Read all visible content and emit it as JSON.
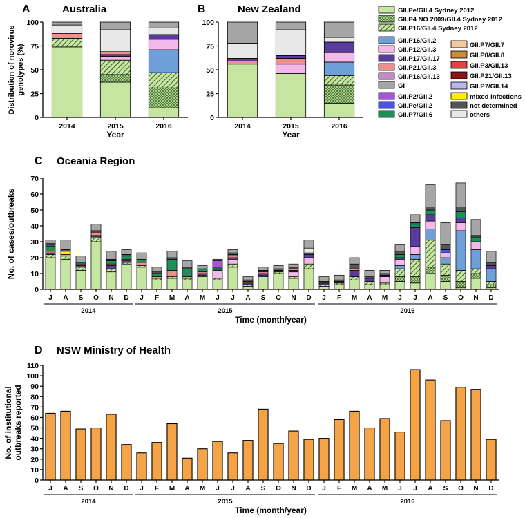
{
  "colors": {
    "sydney2012": "#c5e5a0",
    "p4no2009": "#8fbf6a",
    "p16_gii4": "#c5e5a0",
    "p16_gii2": "#6f9fd8",
    "p12_gii3": "#f2b8e8",
    "p17_gii17": "#5a3c9c",
    "p21_gii3": "#ee8f8f",
    "p16_gii13": "#c48ac7",
    "gi": "#a6a6a6",
    "p2_gii2": "#a855d4",
    "pe_gii2": "#4555e6",
    "p7_gii6": "#1e8f5a",
    "p7_gii7": "#f3c99a",
    "p8_gii8": "#c88a3c",
    "p3_gii13": "#e84040",
    "p21_gii13": "#8b1414",
    "p7_gii14": "#b9b6ee",
    "mixed": "#ffee00",
    "notdet": "#555555",
    "others": "#e8e8e8",
    "nsw_bar": "#f5a347"
  },
  "legend": [
    {
      "key": "sydney2012",
      "label": "GII.Pe/GII.4 Sydney 2012",
      "pattern": "solid"
    },
    {
      "key": "p4no2009",
      "label": "GII.P4 NO 2009/GII.4 Sydney 2012",
      "pattern": "cross"
    },
    {
      "key": "p16_gii4",
      "label": "GII.P16/GII.4 Sydney 2012",
      "pattern": "hatch"
    },
    {
      "key": "p16_gii2",
      "label": "GII.P16/GII.2",
      "pattern": "solid"
    },
    {
      "key": "p12_gii3",
      "label": "GII.P12/GII.3",
      "pattern": "solid"
    },
    {
      "key": "p17_gii17",
      "label": "GII.P17/GII.17",
      "pattern": "solid"
    },
    {
      "key": "p21_gii3",
      "label": "GII.P21/GII.3",
      "pattern": "solid"
    },
    {
      "key": "p16_gii13",
      "label": "GII.P16/GII.13",
      "pattern": "solid"
    },
    {
      "key": "gi",
      "label": "GI",
      "pattern": "solid"
    },
    {
      "key": "p2_gii2",
      "label": "GII.P2/GII.2",
      "pattern": "solid"
    },
    {
      "key": "pe_gii2",
      "label": "GII.Pe/GII.2",
      "pattern": "solid"
    },
    {
      "key": "p7_gii6",
      "label": "GII.P7/GII.6",
      "pattern": "solid"
    },
    {
      "key": "p7_gii7",
      "label": "GII.P7/GII.7",
      "pattern": "solid"
    },
    {
      "key": "p8_gii8",
      "label": "GII.P8/GII.8",
      "pattern": "solid"
    },
    {
      "key": "p3_gii13",
      "label": "GII.P3/GII.13",
      "pattern": "solid"
    },
    {
      "key": "p21_gii13",
      "label": "GII.P21/GII.13",
      "pattern": "solid"
    },
    {
      "key": "p7_gii14",
      "label": "GII.P7/GII.14",
      "pattern": "solid"
    },
    {
      "key": "mixed",
      "label": "mixed infections",
      "pattern": "solid"
    },
    {
      "key": "notdet",
      "label": "not determined",
      "pattern": "solid"
    },
    {
      "key": "others",
      "label": "others",
      "pattern": "solid"
    }
  ],
  "chart_data": [
    {
      "type": "bar",
      "stacked": true,
      "panel": "A",
      "title": "Australia",
      "ylabel": "Distribution of norovirus genotypes (%)",
      "xlabel": "Year",
      "ylim": [
        0,
        100
      ],
      "yticks": [
        0,
        25,
        50,
        75,
        100
      ],
      "categories": [
        "2014",
        "2015",
        "2016"
      ],
      "series": [
        {
          "key": "sydney2012",
          "values": [
            74,
            37,
            10
          ]
        },
        {
          "key": "p4no2009",
          "values": [
            0,
            8,
            21
          ]
        },
        {
          "key": "p16_gii4",
          "values": [
            9,
            15,
            16
          ]
        },
        {
          "key": "p16_gii2",
          "values": [
            0,
            0,
            24
          ]
        },
        {
          "key": "p12_gii3",
          "values": [
            0,
            4,
            11
          ]
        },
        {
          "key": "p17_gii17",
          "values": [
            0,
            2,
            5
          ]
        },
        {
          "key": "p21_gii3",
          "values": [
            5,
            3,
            0
          ]
        },
        {
          "key": "p16_gii13",
          "values": [
            0,
            0,
            0
          ]
        },
        {
          "key": "gi",
          "values": [
            0,
            0,
            0
          ]
        },
        {
          "key": "p2_gii2",
          "values": [
            0,
            0,
            0
          ]
        },
        {
          "key": "pe_gii2",
          "values": [
            0,
            0,
            0
          ]
        },
        {
          "key": "p7_gii6",
          "values": [
            0,
            0,
            0
          ]
        },
        {
          "key": "mixed",
          "values": [
            0,
            0,
            0
          ]
        },
        {
          "key": "notdet",
          "values": [
            0,
            0,
            0
          ]
        },
        {
          "key": "others",
          "values": [
            9,
            23,
            7
          ]
        },
        {
          "key": "gi",
          "values": [
            3,
            8,
            6
          ]
        }
      ]
    },
    {
      "type": "bar",
      "stacked": true,
      "panel": "B",
      "title": "New Zealand",
      "ylabel": "",
      "xlabel": "Year",
      "ylim": [
        0,
        100
      ],
      "yticks": [
        0,
        25,
        50,
        75,
        100
      ],
      "categories": [
        "2014",
        "2015",
        "2016"
      ],
      "series": [
        {
          "key": "sydney2012",
          "values": [
            56,
            46,
            15
          ]
        },
        {
          "key": "p4no2009",
          "values": [
            0,
            0,
            19
          ]
        },
        {
          "key": "p16_gii4",
          "values": [
            0,
            0,
            10
          ]
        },
        {
          "key": "p16_gii2",
          "values": [
            0,
            0,
            14
          ]
        },
        {
          "key": "p12_gii3",
          "values": [
            0,
            10,
            10
          ]
        },
        {
          "key": "p17_gii17",
          "values": [
            0,
            0,
            11
          ]
        },
        {
          "key": "p21_gii3",
          "values": [
            3,
            6,
            0
          ]
        },
        {
          "key": "p16_gii13",
          "values": [
            0,
            0,
            0
          ]
        },
        {
          "key": "notdet",
          "values": [
            0,
            0,
            0
          ]
        },
        {
          "key": "p17_gii17",
          "values": [
            3,
            3,
            0
          ]
        },
        {
          "key": "others",
          "values": [
            16,
            27,
            5
          ]
        },
        {
          "key": "gi",
          "values": [
            22,
            8,
            16
          ]
        }
      ]
    },
    {
      "type": "bar",
      "stacked": true,
      "panel": "C",
      "title": "Oceania Region",
      "ylabel": "No. of cases/outbreaks",
      "xlabel": "Time (month/year)",
      "ylim": [
        0,
        70
      ],
      "yticks": [
        0,
        10,
        20,
        30,
        40,
        50,
        60,
        70
      ],
      "categories": [
        "J",
        "A",
        "S",
        "O",
        "N",
        "D",
        "J",
        "F",
        "M",
        "A",
        "M",
        "J",
        "J",
        "A",
        "S",
        "O",
        "N",
        "D",
        "J",
        "F",
        "M",
        "A",
        "M",
        "J",
        "J",
        "A",
        "S",
        "O",
        "N",
        "D"
      ],
      "year_groups": [
        {
          "label": "2014",
          "start": 0,
          "end": 5
        },
        {
          "label": "2015",
          "start": 6,
          "end": 17
        },
        {
          "label": "2016",
          "start": 18,
          "end": 29
        }
      ],
      "totals": [
        31,
        31,
        21,
        41,
        24,
        25,
        23,
        14,
        24,
        18,
        15,
        19,
        25,
        8,
        14,
        15,
        16,
        31,
        8,
        9,
        20,
        12,
        12,
        28,
        47,
        66,
        42,
        67,
        44,
        24
      ],
      "series": [
        {
          "key": "sydney2012",
          "values": [
            20,
            19,
            12,
            30,
            11,
            16,
            14,
            6,
            7,
            6,
            8,
            6,
            14,
            2,
            8,
            10,
            7,
            13,
            2,
            3,
            6,
            3,
            3,
            5,
            4,
            10,
            5,
            1,
            7,
            1
          ]
        },
        {
          "key": "p4no2009",
          "values": [
            0,
            0,
            0,
            0,
            0,
            0,
            0,
            0,
            0,
            0,
            0,
            0,
            0,
            0,
            0,
            0,
            0,
            0,
            0,
            0,
            0,
            0,
            0,
            3,
            4,
            4,
            4,
            4,
            3,
            2
          ]
        },
        {
          "key": "p16_gii4",
          "values": [
            2,
            2,
            2,
            3,
            2,
            1,
            1,
            1,
            1,
            1,
            1,
            1,
            2,
            1,
            1,
            1,
            1,
            3,
            1,
            1,
            2,
            2,
            1,
            5,
            11,
            17,
            7,
            7,
            3,
            2
          ]
        },
        {
          "key": "p16_gii2",
          "values": [
            0,
            0,
            0,
            0,
            0,
            0,
            0,
            0,
            0,
            0,
            0,
            0,
            0,
            0,
            0,
            0,
            0,
            0,
            0,
            0,
            0,
            0,
            0,
            2,
            3,
            7,
            4,
            25,
            12,
            8
          ]
        },
        {
          "key": "p12_gii3",
          "values": [
            0,
            0,
            0,
            0,
            0,
            0,
            0,
            0,
            0,
            0,
            0,
            5,
            3,
            0,
            0,
            0,
            3,
            4,
            0,
            0,
            0,
            0,
            4,
            4,
            5,
            5,
            3,
            5,
            5,
            0
          ]
        },
        {
          "key": "p17_gii17",
          "values": [
            1,
            0,
            1,
            1,
            2,
            1,
            0,
            0,
            0,
            0,
            1,
            1,
            1,
            1,
            1,
            1,
            1,
            2,
            1,
            1,
            4,
            2,
            1,
            1,
            12,
            4,
            0,
            3,
            0,
            2
          ]
        },
        {
          "key": "p21_gii3",
          "values": [
            1,
            1,
            1,
            2,
            1,
            1,
            2,
            1,
            4,
            1,
            1,
            0,
            1,
            1,
            1,
            0,
            1,
            0,
            0,
            0,
            1,
            0,
            0,
            0,
            0,
            0,
            0,
            0,
            0,
            0
          ]
        },
        {
          "key": "p7_gii6",
          "values": [
            3,
            0,
            1,
            0,
            2,
            2,
            2,
            2,
            7,
            5,
            2,
            1,
            1,
            0,
            0,
            0,
            0,
            0,
            0,
            0,
            0,
            0,
            0,
            2,
            2,
            3,
            0,
            4,
            3,
            0
          ]
        },
        {
          "key": "pe_gii2",
          "values": [
            0,
            0,
            0,
            0,
            0,
            0,
            0,
            0,
            0,
            0,
            0,
            0,
            0,
            0,
            0,
            0,
            0,
            0,
            0,
            0,
            0,
            0,
            0,
            0,
            0,
            0,
            2,
            0,
            0,
            0
          ]
        },
        {
          "key": "p2_gii2",
          "values": [
            0,
            0,
            0,
            0,
            0,
            0,
            0,
            0,
            0,
            0,
            0,
            4,
            0,
            0,
            0,
            0,
            0,
            0,
            0,
            0,
            0,
            0,
            0,
            0,
            0,
            0,
            0,
            0,
            0,
            0
          ]
        },
        {
          "key": "mixed",
          "values": [
            0,
            2,
            0,
            0,
            0,
            0,
            0,
            0,
            0,
            0,
            0,
            0,
            0,
            0,
            0,
            0,
            0,
            0,
            0,
            0,
            0,
            0,
            0,
            0,
            0,
            0,
            0,
            0,
            0,
            0
          ]
        },
        {
          "key": "notdet",
          "values": [
            1,
            1,
            0,
            1,
            1,
            1,
            0,
            1,
            1,
            1,
            0,
            0,
            1,
            1,
            1,
            1,
            1,
            1,
            1,
            1,
            3,
            1,
            1,
            2,
            1,
            2,
            3,
            3,
            1,
            2
          ]
        },
        {
          "key": "others",
          "values": [
            1,
            0,
            0,
            0,
            0,
            0,
            0,
            0,
            0,
            0,
            0,
            0,
            0,
            0,
            0,
            0,
            0,
            3,
            0,
            0,
            0,
            0,
            0,
            0,
            0,
            0,
            0,
            0,
            0,
            0
          ]
        },
        {
          "key": "gi",
          "values": [
            2,
            6,
            4,
            4,
            5,
            3,
            4,
            3,
            4,
            4,
            2,
            1,
            2,
            2,
            2,
            2,
            2,
            5,
            3,
            3,
            4,
            4,
            2,
            4,
            5,
            14,
            14,
            15,
            10,
            7
          ]
        }
      ]
    },
    {
      "type": "bar",
      "panel": "D",
      "title": "NSW Ministry of Health",
      "ylabel": "No. of institutional outbreaks reported",
      "xlabel": "Time (month/year)",
      "ylim": [
        0,
        110
      ],
      "yticks": [
        0,
        10,
        20,
        30,
        40,
        50,
        60,
        70,
        80,
        90,
        100,
        110
      ],
      "categories": [
        "J",
        "A",
        "S",
        "O",
        "N",
        "D",
        "J",
        "F",
        "M",
        "A",
        "M",
        "J",
        "J",
        "A",
        "S",
        "O",
        "N",
        "D",
        "J",
        "F",
        "M",
        "A",
        "M",
        "J",
        "J",
        "A",
        "S",
        "O",
        "N",
        "D"
      ],
      "year_groups": [
        {
          "label": "2014",
          "start": 0,
          "end": 5
        },
        {
          "label": "2015",
          "start": 6,
          "end": 17
        },
        {
          "label": "2016",
          "start": 18,
          "end": 29
        }
      ],
      "values": [
        64,
        66,
        49,
        50,
        63,
        34,
        26,
        36,
        54,
        21,
        30,
        37,
        26,
        38,
        68,
        35,
        47,
        39,
        40,
        58,
        66,
        50,
        59,
        46,
        106,
        96,
        57,
        89,
        87,
        39
      ]
    }
  ]
}
